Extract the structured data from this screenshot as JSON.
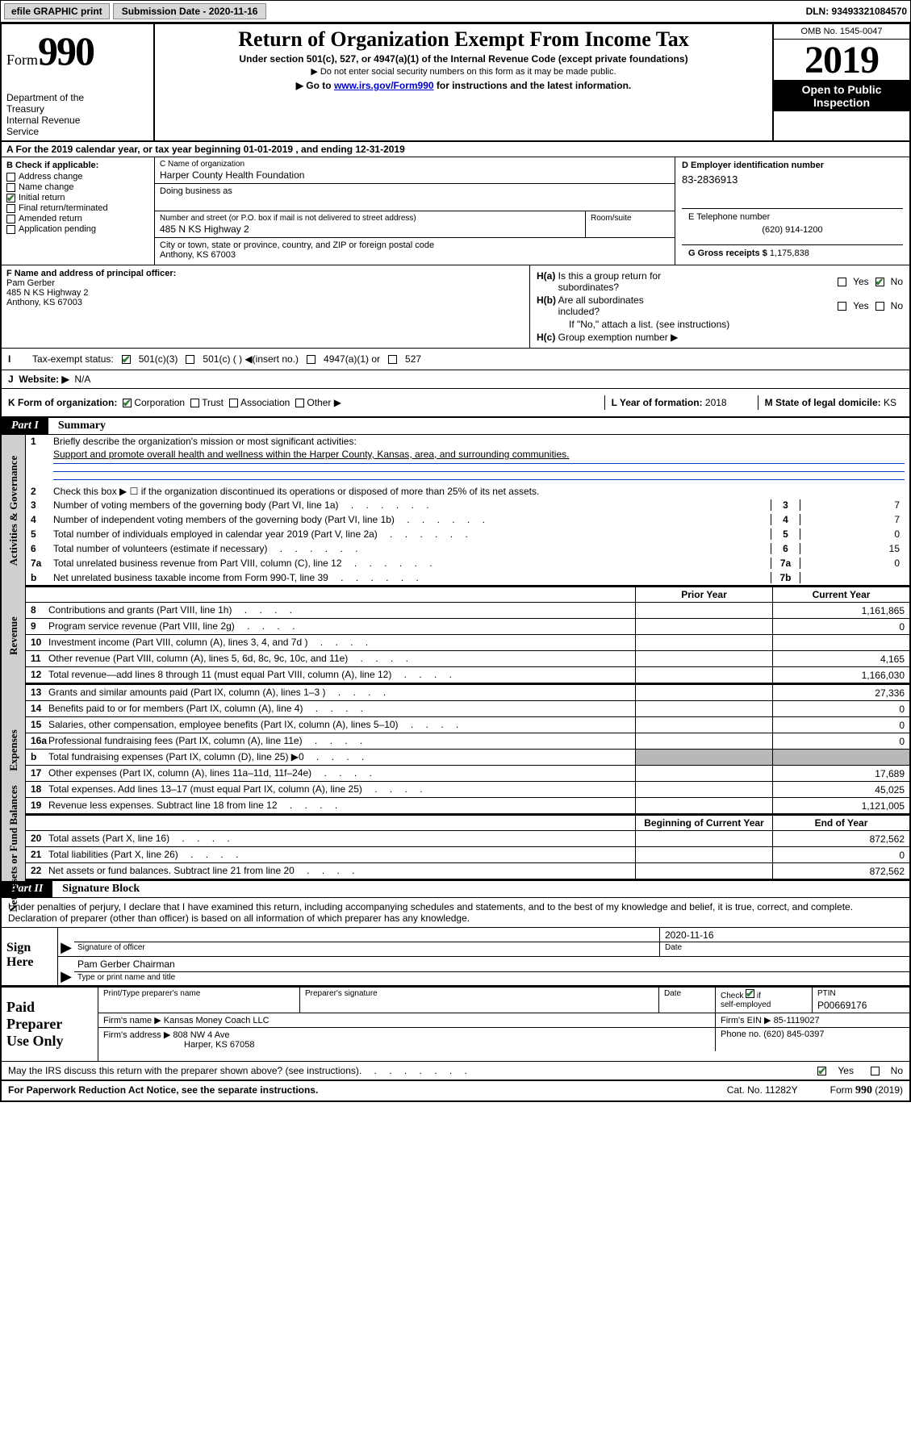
{
  "topbar": {
    "efile": "efile GRAPHIC print",
    "subdate_label": "Submission Date - 2020-11-16",
    "dln": "DLN: 93493321084570"
  },
  "header": {
    "form_word": "Form",
    "form_num": "990",
    "dept": "Department of the Treasury\nInternal Revenue Service",
    "title": "Return of Organization Exempt From Income Tax",
    "subtitle1": "Under section 501(c), 527, or 4947(a)(1) of the Internal Revenue Code (except private foundations)",
    "subtitle2": "▶ Do not enter social security numbers on this form as it may be made public.",
    "subtitle3_pre": "▶ Go to ",
    "subtitle3_link": "www.irs.gov/Form990",
    "subtitle3_post": " for instructions and the latest information.",
    "omb": "OMB No. 1545-0047",
    "year": "2019",
    "open_public": "Open to Public Inspection"
  },
  "period": {
    "text_a": "A  For the 2019 calendar year, or tax year beginning 01-01-2019    , and ending 12-31-2019"
  },
  "boxB": {
    "header": "B Check if applicable:",
    "items": [
      {
        "label": "Address change",
        "checked": false
      },
      {
        "label": "Name change",
        "checked": false
      },
      {
        "label": "Initial return",
        "checked": true
      },
      {
        "label": "Final return/terminated",
        "checked": false
      },
      {
        "label": "Amended return",
        "checked": false
      },
      {
        "label": "Application pending",
        "checked": false
      }
    ]
  },
  "boxC": {
    "name_label": "C Name of organization",
    "name": "Harper County Health Foundation",
    "dba_label": "Doing business as",
    "street_label": "Number and street (or P.O. box if mail is not delivered to street address)",
    "street": "485 N KS Highway 2",
    "suite_label": "Room/suite",
    "city_label": "City or town, state or province, country, and ZIP or foreign postal code",
    "city": "Anthony, KS  67003"
  },
  "boxD": {
    "ein_label": "D Employer identification number",
    "ein": "83-2836913",
    "phone_label": "E Telephone number",
    "phone": "(620) 914-1200",
    "gross_label": "G Gross receipts $",
    "gross": "1,175,838"
  },
  "boxF": {
    "label": "F  Name and address of principal officer:",
    "name": "Pam Gerber",
    "addr1": "485 N KS Highway 2",
    "addr2": "Anthony, KS  67003"
  },
  "boxH": {
    "a": "H(a)  Is this a group return for subordinates?",
    "b": "H(b)  Are all subordinates included?",
    "note": "If \"No,\" attach a list. (see instructions)",
    "c": "H(c)  Group exemption number ▶"
  },
  "rowI": {
    "label": "Tax-exempt status:",
    "opts": [
      "501(c)(3)",
      "501(c) (   ) ◀(insert no.)",
      "4947(a)(1) or",
      "527"
    ]
  },
  "rowJ": {
    "label": "Website: ▶",
    "val": "N/A"
  },
  "rowK": {
    "label": "K Form of organization:",
    "opts": [
      "Corporation",
      "Trust",
      "Association",
      "Other ▶"
    ],
    "L_label": "L Year of formation:",
    "L_val": "2018",
    "M_label": "M State of legal domicile:",
    "M_val": "KS"
  },
  "partI": {
    "tab": "Part I",
    "title": "Summary",
    "mission_label": "Briefly describe the organization's mission or most significant activities:",
    "mission": "Support and promote overall health and wellness within the Harper County, Kansas, area, and surrounding communities.",
    "line2": "Check this box ▶ ☐  if the organization discontinued its operations or disposed of more than 25% of its net assets.",
    "governance": [
      {
        "n": "3",
        "t": "Number of voting members of the governing body (Part VI, line 1a)",
        "k": "3",
        "v": "7"
      },
      {
        "n": "4",
        "t": "Number of independent voting members of the governing body (Part VI, line 1b)",
        "k": "4",
        "v": "7"
      },
      {
        "n": "5",
        "t": "Total number of individuals employed in calendar year 2019 (Part V, line 2a)",
        "k": "5",
        "v": "0"
      },
      {
        "n": "6",
        "t": "Total number of volunteers (estimate if necessary)",
        "k": "6",
        "v": "15"
      },
      {
        "n": "7a",
        "t": "Total unrelated business revenue from Part VIII, column (C), line 12",
        "k": "7a",
        "v": "0"
      },
      {
        "n": "b",
        "t": "Net unrelated business taxable income from Form 990-T, line 39",
        "k": "7b",
        "v": ""
      }
    ],
    "col_hdrs": {
      "prior": "Prior Year",
      "current": "Current Year"
    },
    "revenue": [
      {
        "n": "8",
        "t": "Contributions and grants (Part VIII, line 1h)",
        "p": "",
        "c": "1,161,865"
      },
      {
        "n": "9",
        "t": "Program service revenue (Part VIII, line 2g)",
        "p": "",
        "c": "0"
      },
      {
        "n": "10",
        "t": "Investment income (Part VIII, column (A), lines 3, 4, and 7d )",
        "p": "",
        "c": ""
      },
      {
        "n": "11",
        "t": "Other revenue (Part VIII, column (A), lines 5, 6d, 8c, 9c, 10c, and 11e)",
        "p": "",
        "c": "4,165"
      },
      {
        "n": "12",
        "t": "Total revenue—add lines 8 through 11 (must equal Part VIII, column (A), line 12)",
        "p": "",
        "c": "1,166,030"
      }
    ],
    "expenses": [
      {
        "n": "13",
        "t": "Grants and similar amounts paid (Part IX, column (A), lines 1–3 )",
        "p": "",
        "c": "27,336"
      },
      {
        "n": "14",
        "t": "Benefits paid to or for members (Part IX, column (A), line 4)",
        "p": "",
        "c": "0"
      },
      {
        "n": "15",
        "t": "Salaries, other compensation, employee benefits (Part IX, column (A), lines 5–10)",
        "p": "",
        "c": "0"
      },
      {
        "n": "16a",
        "t": "Professional fundraising fees (Part IX, column (A), line 11e)",
        "p": "",
        "c": "0"
      },
      {
        "n": "b",
        "t": "Total fundraising expenses (Part IX, column (D), line 25) ▶0",
        "p": "gray",
        "c": "gray"
      },
      {
        "n": "17",
        "t": "Other expenses (Part IX, column (A), lines 11a–11d, 11f–24e)",
        "p": "",
        "c": "17,689"
      },
      {
        "n": "18",
        "t": "Total expenses. Add lines 13–17 (must equal Part IX, column (A), line 25)",
        "p": "",
        "c": "45,025"
      },
      {
        "n": "19",
        "t": "Revenue less expenses. Subtract line 18 from line 12",
        "p": "",
        "c": "1,121,005"
      }
    ],
    "net_hdrs": {
      "begin": "Beginning of Current Year",
      "end": "End of Year"
    },
    "netassets": [
      {
        "n": "20",
        "t": "Total assets (Part X, line 16)",
        "p": "",
        "c": "872,562"
      },
      {
        "n": "21",
        "t": "Total liabilities (Part X, line 26)",
        "p": "",
        "c": "0"
      },
      {
        "n": "22",
        "t": "Net assets or fund balances. Subtract line 21 from line 20",
        "p": "",
        "c": "872,562"
      }
    ]
  },
  "vtabs": {
    "gov": "Activities & Governance",
    "rev": "Revenue",
    "exp": "Expenses",
    "net": "Net Assets or Fund Balances"
  },
  "partII": {
    "tab": "Part II",
    "title": "Signature Block",
    "perjury": "Under penalties of perjury, I declare that I have examined this return, including accompanying schedules and statements, and to the best of my knowledge and belief, it is true, correct, and complete. Declaration of preparer (other than officer) is based on all information of which preparer has any knowledge.",
    "sign_here": "Sign Here",
    "sig_officer_cap": "Signature of officer",
    "sig_date": "2020-11-16",
    "sig_date_cap": "Date",
    "officer_name": "Pam Gerber  Chairman",
    "officer_cap": "Type or print name and title",
    "paid_label": "Paid Preparer Use Only",
    "prep_name_cap": "Print/Type preparer's name",
    "prep_sig_cap": "Preparer's signature",
    "prep_date_cap": "Date",
    "check_se": "Check ☑ if self-employed",
    "ptin_cap": "PTIN",
    "ptin": "P00669176",
    "firm_name_cap": "Firm's name    ▶",
    "firm_name": "Kansas Money Coach LLC",
    "firm_ein_cap": "Firm's EIN ▶",
    "firm_ein": "85-1119027",
    "firm_addr_cap": "Firm's address ▶",
    "firm_addr1": "808 NW 4 Ave",
    "firm_addr2": "Harper, KS  67058",
    "phone_cap": "Phone no.",
    "phone": "(620) 845-0397",
    "discuss": "May the IRS discuss this return with the preparer shown above? (see instructions)"
  },
  "footer": {
    "notice": "For Paperwork Reduction Act Notice, see the separate instructions.",
    "cat": "Cat. No. 11282Y",
    "form": "Form 990 (2019)"
  },
  "colors": {
    "rule_blue": "#0040c0",
    "gray_tab": "#cfcfcf",
    "gray_cell": "#b8b8b8",
    "check_green": "#2e7d32"
  }
}
